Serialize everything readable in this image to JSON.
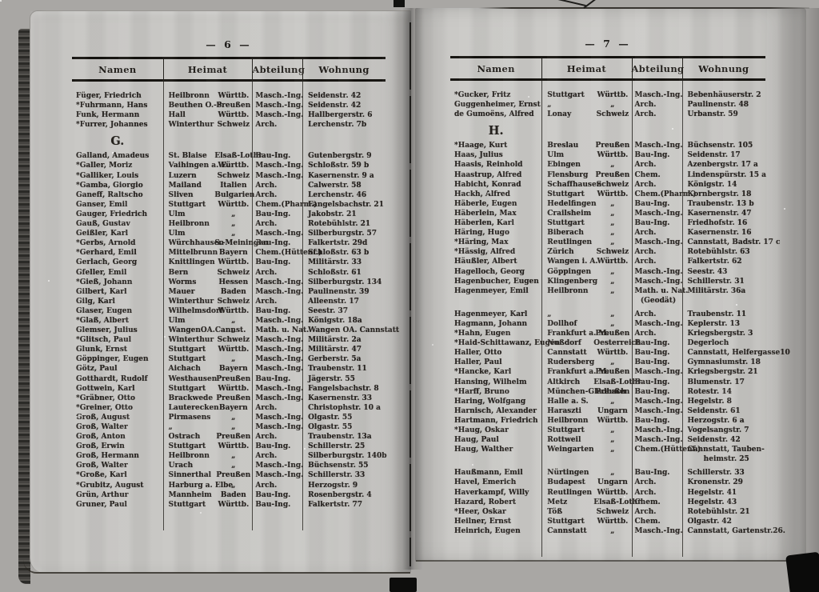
{
  "book": {
    "pages": [
      {
        "page_label": "—  6  —",
        "columns": [
          "Namen",
          "Heimat",
          "Abteilung",
          "Wohnung"
        ],
        "sections": [
          {
            "heading": "",
            "rows": [
              {
                "name": "Füger, Friedrich",
                "place": "Heilbronn",
                "state": "Württb.",
                "dept": "Masch.-Ing.",
                "addr": "Seidenstr. 42"
              },
              {
                "name": "*Fuhrmann, Hans",
                "place": "Beuthen O.-S.",
                "state": "Preußen",
                "dept": "Masch.-Ing.",
                "addr": "Seidenstr. 42"
              },
              {
                "name": "Funk, Hermann",
                "place": "Hall",
                "state": "Württb.",
                "dept": "Masch.-Ing.",
                "addr": "Hallbergerstr. 6"
              },
              {
                "name": "*Furrer, Johannes",
                "place": "Winterthur",
                "state": "Schweiz",
                "dept": "Arch.",
                "addr": "Lerchenstr. 7b"
              }
            ]
          },
          {
            "heading": "G.",
            "rows": [
              {
                "name": "Galland, Amadeus",
                "place": "St. Blaise",
                "state": "Elsaß-Lothr.",
                "dept": "Bau-Ing.",
                "addr": "Gutenbergstr. 9"
              },
              {
                "name": "*Galler, Moriz",
                "place": "Vaihingen a. E.",
                "state": "Württb.",
                "dept": "Masch.-Ing.",
                "addr": "Schloßstr. 59 b"
              },
              {
                "name": "*Galliker, Louis",
                "place": "Luzern",
                "state": "Schweiz",
                "dept": "Masch.-Ing.",
                "addr": "Kasernenstr. 9 a"
              },
              {
                "name": "*Gamba, Giorgio",
                "place": "Mailand",
                "state": "Italien",
                "dept": "Arch.",
                "addr": "Calwerstr. 58"
              },
              {
                "name": "Ganeff, Raltscho",
                "place": "Sliven",
                "state": "Bulgarien",
                "dept": "Arch.",
                "addr": "Lerchenstr. 46"
              },
              {
                "name": "Ganser, Emil",
                "place": "Stuttgart",
                "state": "Württb.",
                "dept": "Chem.(Pharm.)",
                "addr": "Fangelsbachstr. 21"
              },
              {
                "name": "Gauger, Friedrich",
                "place": "Ulm",
                "state": "„",
                "dept": "Bau-Ing.",
                "addr": "Jakobstr. 21"
              },
              {
                "name": "Gauß, Gustav",
                "place": "Heilbronn",
                "state": "„",
                "dept": "Arch.",
                "addr": "Rotebühlstr. 21"
              },
              {
                "name": "Geißler, Karl",
                "place": "Ulm",
                "state": "„",
                "dept": "Masch.-Ing.",
                "addr": "Silberburgstr. 57"
              },
              {
                "name": "*Gerbs, Arnold",
                "place": "Würchhausen",
                "state": "S.-Meiningen",
                "dept": "Bau-Ing.",
                "addr": "Falkertstr. 29d"
              },
              {
                "name": "*Gerhard, Emil",
                "place": "Mittelbrunn",
                "state": "Bayern",
                "dept": "Chem.(Hüttenf.)",
                "addr": "Schloßstr. 63 b"
              },
              {
                "name": "Gerlach, Georg",
                "place": "Knittlingen",
                "state": "Württb.",
                "dept": "Bau-Ing.",
                "addr": "Militärstr. 33"
              },
              {
                "name": "Gfeller, Emil",
                "place": "Bern",
                "state": "Schweiz",
                "dept": "Arch.",
                "addr": "Schloßstr. 61"
              },
              {
                "name": "*Gieß, Johann",
                "place": "Worms",
                "state": "Hessen",
                "dept": "Masch.-Ing.",
                "addr": "Silberburgstr. 134"
              },
              {
                "name": "Gilbert, Karl",
                "place": "Mauer",
                "state": "Baden",
                "dept": "Masch.-Ing.",
                "addr": "Paulinenstr. 39"
              },
              {
                "name": "Gilg, Karl",
                "place": "Winterthur",
                "state": "Schweiz",
                "dept": "Arch.",
                "addr": "Alleenstr. 17"
              },
              {
                "name": "Glaser, Eugen",
                "place": "Wilhelmsdorf",
                "state": "Württb.",
                "dept": "Bau-Ing.",
                "addr": "Seestr. 37"
              },
              {
                "name": "*Glaß, Albert",
                "place": "Ulm",
                "state": "„",
                "dept": "Masch.-Ing.",
                "addr": "Königstr. 18a"
              },
              {
                "name": "Glemser, Julius",
                "place": "WangenOA.Cannst.",
                "state": "„",
                "dept": "Math. u. Nat.",
                "addr": "Wangen OA. Cannstatt"
              },
              {
                "name": "*Glitsch, Paul",
                "place": "Winterthur",
                "state": "Schweiz",
                "dept": "Masch.-Ing.",
                "addr": "Militärstr. 2a"
              },
              {
                "name": "Glunk, Ernst",
                "place": "Stuttgart",
                "state": "Württb.",
                "dept": "Masch.-Ing.",
                "addr": "Militärstr. 47"
              },
              {
                "name": "Göppinger, Eugen",
                "place": "Stuttgart",
                "state": "„",
                "dept": "Masch.-Ing.",
                "addr": "Gerberstr. 5a"
              },
              {
                "name": "Götz, Paul",
                "place": "Aichach",
                "state": "Bayern",
                "dept": "Masch.-Ing.",
                "addr": "Traubenstr. 11"
              },
              {
                "name": "Gotthardt, Rudolf",
                "place": "Westhausen",
                "state": "Preußen",
                "dept": "Bau-Ing.",
                "addr": "Jägerstr. 55"
              },
              {
                "name": "Gottwein, Karl",
                "place": "Stuttgart",
                "state": "Württb.",
                "dept": "Masch.-Ing.",
                "addr": "Fangelsbachstr. 8"
              },
              {
                "name": "*Gräbner, Otto",
                "place": "Brackwede",
                "state": "Preußen",
                "dept": "Masch.-Ing.",
                "addr": "Kasernenstr. 33"
              },
              {
                "name": "*Greiner, Otto",
                "place": "Lauterecken",
                "state": "Bayern",
                "dept": "Arch.",
                "addr": "Christophstr. 10 a"
              },
              {
                "name": "Groß, August",
                "place": "Pirmasens",
                "state": "„",
                "dept": "Masch.-Ing.",
                "addr": "Olgastr. 55"
              },
              {
                "name": "Groß, Walter",
                "place": "„",
                "state": "„",
                "dept": "Masch.-Ing.",
                "addr": "Olgastr. 55"
              },
              {
                "name": "Groß, Anton",
                "place": "Ostrach",
                "state": "Preußen",
                "dept": "Arch.",
                "addr": "Traubenstr. 13a"
              },
              {
                "name": "Groß, Erwin",
                "place": "Stuttgart",
                "state": "Württb.",
                "dept": "Bau-Ing.",
                "addr": "Schillerstr. 25"
              },
              {
                "name": "Groß, Hermann",
                "place": "Heilbronn",
                "state": "„",
                "dept": "Arch.",
                "addr": "Silberburgstr. 140b"
              },
              {
                "name": "Groß, Walter",
                "place": "Urach",
                "state": "„",
                "dept": "Masch.-Ing.",
                "addr": "Büchsenstr. 55"
              },
              {
                "name": "*Große, Karl",
                "place": "Sinnerthal",
                "state": "Preußen",
                "dept": "Masch.-Ing.",
                "addr": "Schillerstr. 33"
              },
              {
                "name": "*Grubitz, August",
                "place": "Harburg a. Elbe",
                "state": "„",
                "dept": "Arch.",
                "addr": "Herzogstr. 9"
              },
              {
                "name": "Grün, Arthur",
                "place": "Mannheim",
                "state": "Baden",
                "dept": "Bau-Ing.",
                "addr": "Rosenbergstr. 4"
              },
              {
                "name": "Gruner, Paul",
                "place": "Stuttgart",
                "state": "Württb.",
                "dept": "Bau-Ing.",
                "addr": "Falkertstr. 77"
              }
            ]
          }
        ]
      },
      {
        "page_label": "—  7  —",
        "columns": [
          "Namen",
          "Heimat",
          "Abteilung",
          "Wohnung"
        ],
        "sections": [
          {
            "heading": "",
            "rows": [
              {
                "name": "*Gucker, Fritz",
                "place": "Stuttgart",
                "state": "Württb.",
                "dept": "Masch.-Ing.",
                "addr": "Bebenhäuserstr. 2"
              },
              {
                "name": "Guggenheimer, Ernst",
                "place": "„",
                "state": "„",
                "dept": "Arch.",
                "addr": "Paulinenstr. 48"
              },
              {
                "name": "de Gumoëns, Alfred",
                "place": "Lonay",
                "state": "Schweiz",
                "dept": "Arch.",
                "addr": "Urbanstr. 59"
              }
            ]
          },
          {
            "heading": "H.",
            "rows": [
              {
                "name": "*Haage, Kurt",
                "place": "Breslau",
                "state": "Preußen",
                "dept": "Masch.-Ing.",
                "addr": "Büchsenstr. 105"
              },
              {
                "name": "Haas, Julius",
                "place": "Ulm",
                "state": "Württb.",
                "dept": "Bau-Ing.",
                "addr": "Seidenstr. 17"
              },
              {
                "name": "Haasis, Reinhold",
                "place": "Ebingen",
                "state": "„",
                "dept": "Arch.",
                "addr": "Azenbergstr. 17 a"
              },
              {
                "name": "Haastrup, Alfred",
                "place": "Flensburg",
                "state": "Preußen",
                "dept": "Chem.",
                "addr": "Lindenspürstr. 15 a"
              },
              {
                "name": "Habicht, Konrad",
                "place": "Schaffhausen",
                "state": "Schweiz",
                "dept": "Arch.",
                "addr": "Königstr. 14"
              },
              {
                "name": "Hackh, Alfred",
                "place": "Stuttgart",
                "state": "Württb.",
                "dept": "Chem.(Pharm.)",
                "addr": "Kornbergstr. 18"
              },
              {
                "name": "Häberle, Eugen",
                "place": "Hedelfingen",
                "state": "„",
                "dept": "Bau-Ing.",
                "addr": "Traubenstr. 13 b"
              },
              {
                "name": "Häberlein, Max",
                "place": "Crailsheim",
                "state": "„",
                "dept": "Masch.-Ing.",
                "addr": "Kasernenstr. 47"
              },
              {
                "name": "Häberlen, Karl",
                "place": "Stuttgart",
                "state": "„",
                "dept": "Bau-Ing.",
                "addr": "Friedhofstr. 16"
              },
              {
                "name": "Häring, Hugo",
                "place": "Biberach",
                "state": "„",
                "dept": "Arch.",
                "addr": "Kasernenstr. 16"
              },
              {
                "name": "*Häring, Max",
                "place": "Reutlingen",
                "state": "„",
                "dept": "Masch.-Ing.",
                "addr": "Cannstatt, Badstr. 17 c"
              },
              {
                "name": "*Hässig, Alfred",
                "place": "Zürich",
                "state": "Schweiz",
                "dept": "Arch.",
                "addr": "Rotebühlstr. 63"
              },
              {
                "name": "Häußler, Albert",
                "place": "Wangen i. A.",
                "state": "Württb.",
                "dept": "Arch.",
                "addr": "Falkertstr. 62"
              },
              {
                "name": "Hagelloch, Georg",
                "place": "Göppingen",
                "state": "„",
                "dept": "Masch.-Ing.",
                "addr": "Seestr. 43"
              },
              {
                "name": "Hagenbucher, Eugen",
                "place": "Klingenberg",
                "state": "„",
                "dept": "Masch.-Ing.",
                "addr": "Schillerstr. 31"
              },
              {
                "name": "Hagenmeyer, Emil",
                "place": "Heilbronn",
                "state": "„",
                "dept": "Math. u. Nat.",
                "dept2": "(Geodät)",
                "addr": "Militärstr. 36a"
              },
              {
                "name": "Hagenmeyer, Karl",
                "place": "„",
                "state": "„",
                "dept": "Arch.",
                "addr": "Traubenstr. 11",
                "gap": true
              },
              {
                "name": "Hagmann, Johann",
                "place": "Dollhof",
                "state": "„",
                "dept": "Masch.-Ing.",
                "addr": "Keplerstr. 13"
              },
              {
                "name": "*Hahn, Eugen",
                "place": "Frankfurt a. M.",
                "state": "Preußen",
                "dept": "Arch.",
                "addr": "Kriegsbergstr. 3"
              },
              {
                "name": "*Haid-Schittawanz, Eugen",
                "place": "Nußdorf",
                "state": "Oesterreich",
                "dept": "Bau-Ing.",
                "addr": "Degerloch"
              },
              {
                "name": "Haller, Otto",
                "place": "Cannstatt",
                "state": "Württb.",
                "dept": "Bau-Ing.",
                "addr": "Cannstatt, Helfergasse10"
              },
              {
                "name": "Haller, Paul",
                "place": "Rudersberg",
                "state": "„",
                "dept": "Bau-Ing.",
                "addr": "Gymnasiumstr. 18"
              },
              {
                "name": "*Hancke, Karl",
                "place": "Frankfurt a. M.",
                "state": "Preußen",
                "dept": "Masch.-Ing.",
                "addr": "Kriegsbergstr. 21"
              },
              {
                "name": "Hansing, Wilhelm",
                "place": "Altkirch",
                "state": "Elsaß-Lothr.",
                "dept": "Bau-Ing.",
                "addr": "Blumenstr. 17"
              },
              {
                "name": "*Harff, Bruno",
                "place": "München-Gladbach",
                "state": "Preußen",
                "dept": "Bau-Ing.",
                "addr": "Rotestr. 14"
              },
              {
                "name": "Haring, Wolfgang",
                "place": "Halle a. S.",
                "state": "„",
                "dept": "Masch.-Ing.",
                "addr": "Hegelstr. 8"
              },
              {
                "name": "Harnisch, Alexander",
                "place": "Haraszti",
                "state": "Ungarn",
                "dept": "Masch.-Ing.",
                "addr": "Seidenstr. 61"
              },
              {
                "name": "Hartmann, Friedrich",
                "place": "Heilbronn",
                "state": "Württb.",
                "dept": "Bau-Ing.",
                "addr": "Herzogstr. 6 a"
              },
              {
                "name": "*Haug, Oskar",
                "place": "Stuttgart",
                "state": "„",
                "dept": "Masch.-Ing.",
                "addr": "Vogelsangstr. 7"
              },
              {
                "name": "Haug, Paul",
                "place": "Rottweil",
                "state": "„",
                "dept": "Masch.-Ing.",
                "addr": "Seidenstr. 42"
              },
              {
                "name": "Haug, Walther",
                "place": "Weingarten",
                "state": "„",
                "dept": "Chem.(Hüttenf.)",
                "addr": "Cannstatt, Tauben-",
                "addr2": "heimstr. 25"
              },
              {
                "name": "Haußmann, Emil",
                "place": "Nürtingen",
                "state": "„",
                "dept": "Bau-Ing.",
                "addr": "Schillerstr. 33",
                "gap": true
              },
              {
                "name": "Havel, Emerich",
                "place": "Budapest",
                "state": "Ungarn",
                "dept": "Arch.",
                "addr": "Kronenstr. 29"
              },
              {
                "name": "Haverkampf, Willy",
                "place": "Reutlingen",
                "state": "Württb.",
                "dept": "Arch.",
                "addr": "Hegelstr. 41"
              },
              {
                "name": "Hazard, Robert",
                "place": "Metz",
                "state": "Elsaß-Lothr.",
                "dept": "Chem.",
                "addr": "Hegelstr. 43"
              },
              {
                "name": "*Heer, Oskar",
                "place": "Töß",
                "state": "Schweiz",
                "dept": "Arch.",
                "addr": "Rotebühlstr. 21"
              },
              {
                "name": "Heilner, Ernst",
                "place": "Stuttgart",
                "state": "Württb.",
                "dept": "Chem.",
                "addr": "Olgastr. 42"
              },
              {
                "name": "Heinrich, Eugen",
                "place": "Cannstatt",
                "state": "„",
                "dept": "Masch.-Ing.",
                "addr": "Cannstatt, Gartenstr.26."
              }
            ]
          }
        ]
      }
    ]
  }
}
